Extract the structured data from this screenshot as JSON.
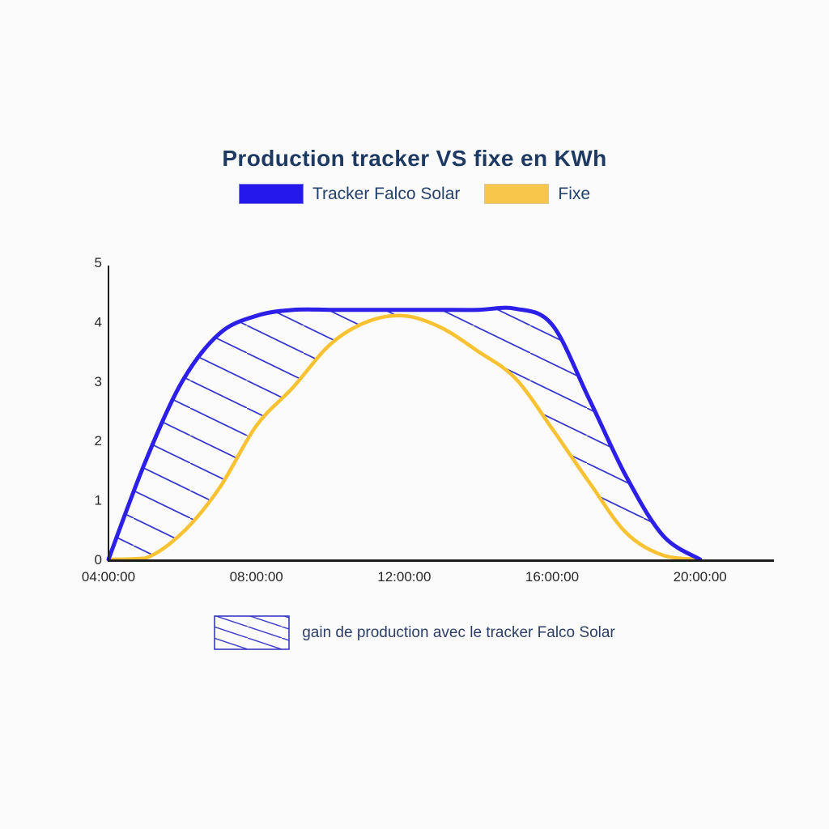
{
  "header": {
    "title": "Production tracker VS fixe en KWh"
  },
  "legend": {
    "items": [
      {
        "label": "Tracker Falco Solar",
        "color": "#2418ec"
      },
      {
        "label": "Fixe",
        "color": "#f7c64a"
      }
    ]
  },
  "caption": {
    "label": "gain de production avec le tracker Falco Solar",
    "hatch_color": "#3a3ac6",
    "border_color": "#3a3ac6"
  },
  "chart_data": {
    "type": "line",
    "title": "Production tracker VS fixe en KWh",
    "x_hours": [
      4,
      5,
      6,
      7,
      8,
      9,
      10,
      11,
      12,
      13,
      14,
      15,
      16,
      17,
      18,
      19,
      20
    ],
    "x_tick_hours": [
      4,
      8,
      12,
      16,
      20
    ],
    "x_tick_labels": [
      "04:00:00",
      "08:00:00",
      "12:00:00",
      "16:00:00",
      "20:00:00"
    ],
    "y_ticks": [
      0,
      1,
      2,
      3,
      4,
      5
    ],
    "y_tick_labels": [
      "0",
      "1",
      "2",
      "3",
      "4",
      "5"
    ],
    "xlim": [
      4,
      22
    ],
    "ylim": [
      0,
      5
    ],
    "grid": false,
    "legend_position": "top",
    "series": [
      {
        "name": "Tracker Falco Solar",
        "color": "#2b1fe8",
        "values": [
          0,
          1.65,
          3.0,
          3.8,
          4.1,
          4.2,
          4.2,
          4.2,
          4.2,
          4.2,
          4.2,
          4.22,
          3.95,
          2.7,
          1.4,
          0.4,
          0
        ]
      },
      {
        "name": "Fixe",
        "color": "#f9c233",
        "values": [
          0,
          0.02,
          0.45,
          1.2,
          2.25,
          2.9,
          3.62,
          4.0,
          4.1,
          3.9,
          3.5,
          3.05,
          2.2,
          1.3,
          0.45,
          0.07,
          0
        ]
      }
    ],
    "fill_between": {
      "between": [
        "Tracker Falco Solar",
        "Fixe"
      ],
      "pattern": "diagonal-hatch",
      "color": "#3434cf",
      "meaning": "gain de production avec le tracker Falco Solar"
    },
    "axis_color": "#1d1d1d",
    "tick_color": "#262626"
  }
}
